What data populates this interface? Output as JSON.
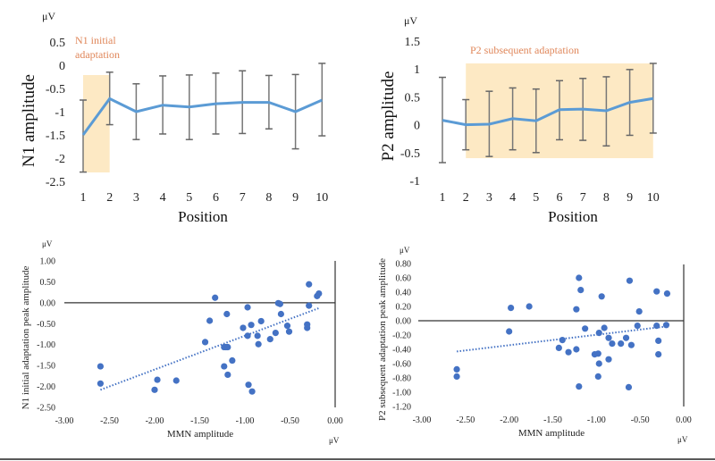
{
  "chart_data": [
    {
      "type": "line",
      "id": "n1",
      "title": "",
      "ylabel": "N1 amplitude",
      "xlabel": "Position",
      "unit": "μV",
      "ylim": [
        -2.5,
        0.5
      ],
      "yticks": [
        0.5,
        0,
        -0.5,
        -1,
        -1.5,
        -2,
        -2.5
      ],
      "ytick_labels": [
        "0.5",
        "0",
        "-0.5",
        "-1",
        "-1.5",
        "-2",
        "-2.5"
      ],
      "x": [
        1,
        2,
        3,
        4,
        5,
        6,
        7,
        8,
        9,
        10
      ],
      "xtick_labels": [
        "1",
        "2",
        "3",
        "4",
        "5",
        "6",
        "7",
        "8",
        "9",
        "10"
      ],
      "series": [
        {
          "name": "N1",
          "color": "#5b9bd5",
          "values": [
            -1.5,
            -0.72,
            -1.0,
            -0.86,
            -0.9,
            -0.83,
            -0.8,
            -0.8,
            -1.0,
            -0.75
          ]
        }
      ],
      "error_low": [
        -2.3,
        -1.28,
        -1.6,
        -1.48,
        -1.6,
        -1.48,
        -1.47,
        -1.37,
        -1.8,
        -1.52
      ],
      "error_high": [
        -0.75,
        -0.15,
        -0.4,
        -0.23,
        -0.21,
        -0.17,
        -0.12,
        -0.22,
        -0.2,
        0.04
      ],
      "highlight": {
        "from_position": 1,
        "to_position": 2,
        "color": "#fde9c4",
        "label_lines": [
          "N1 initial",
          "adaptation"
        ]
      },
      "annotation_color": "#e0875a"
    },
    {
      "type": "line",
      "id": "p2",
      "title": "",
      "ylabel": "P2 amplitude",
      "xlabel": "Position",
      "unit": "μV",
      "ylim": [
        -1,
        1.5
      ],
      "yticks": [
        1.5,
        1,
        0.5,
        0,
        -0.5,
        -1
      ],
      "ytick_labels": [
        "1.5",
        "1",
        "0.5",
        "0",
        "-0.5",
        "-1"
      ],
      "x": [
        1,
        2,
        3,
        4,
        5,
        6,
        7,
        8,
        9,
        10
      ],
      "xtick_labels": [
        "1",
        "2",
        "3",
        "4",
        "5",
        "6",
        "7",
        "8",
        "9",
        "10"
      ],
      "series": [
        {
          "name": "P2",
          "color": "#5b9bd5",
          "values": [
            0.08,
            0.0,
            0.01,
            0.11,
            0.07,
            0.27,
            0.28,
            0.25,
            0.4,
            0.47
          ]
        }
      ],
      "error_low": [
        -0.68,
        -0.45,
        -0.57,
        -0.45,
        -0.5,
        -0.27,
        -0.28,
        -0.38,
        -0.19,
        -0.15
      ],
      "error_high": [
        0.85,
        0.45,
        0.6,
        0.66,
        0.64,
        0.79,
        0.83,
        0.86,
        0.99,
        1.1
      ],
      "highlight": {
        "from_position": 2,
        "to_position": 10,
        "y_range": [
          -0.6,
          1.1
        ],
        "color": "#fde9c4",
        "label_lines": [
          "P2 subsequent adaptation"
        ]
      },
      "annotation_color": "#e0875a"
    },
    {
      "type": "scatter",
      "id": "n1-mmn",
      "ylabel": "N1 initial adaptation peak amplitude",
      "xlabel": "MMN amplitude",
      "y_unit": "μV",
      "x_unit": "μV",
      "xlim": [
        -3.0,
        0.0
      ],
      "ylim": [
        -2.5,
        1.0
      ],
      "xticks": [
        -3.0,
        -2.5,
        -2.0,
        -1.5,
        -1.0,
        -0.5,
        0.0
      ],
      "xtick_labels": [
        "-3.00",
        "-2.50",
        "-2.00",
        "-1.50",
        "-1.00",
        "-0.50",
        "0.00"
      ],
      "yticks": [
        1.0,
        0.5,
        0.0,
        -0.5,
        -1.0,
        -1.5,
        -2.0,
        -2.5
      ],
      "ytick_labels": [
        "1.00",
        "0.50",
        "0.00",
        "-0.50",
        "-1.00",
        "-1.50",
        "-2.00",
        "-2.50"
      ],
      "point_color": "#4472c4",
      "points": [
        [
          -2.6,
          -1.52
        ],
        [
          -2.6,
          -1.93
        ],
        [
          -2.0,
          -2.08
        ],
        [
          -1.97,
          -1.84
        ],
        [
          -1.76,
          -1.86
        ],
        [
          -1.33,
          0.12
        ],
        [
          -1.39,
          -0.43
        ],
        [
          -1.44,
          -0.94
        ],
        [
          -1.2,
          -0.27
        ],
        [
          -1.23,
          -1.06
        ],
        [
          -1.21,
          -1.06
        ],
        [
          -1.19,
          -1.06
        ],
        [
          -1.23,
          -1.52
        ],
        [
          -1.19,
          -1.72
        ],
        [
          -1.14,
          -1.38
        ],
        [
          -0.97,
          -0.11
        ],
        [
          -1.02,
          -0.6
        ],
        [
          -0.93,
          -0.53
        ],
        [
          -0.97,
          -0.79
        ],
        [
          -0.82,
          -0.44
        ],
        [
          -0.86,
          -0.79
        ],
        [
          -0.85,
          -0.99
        ],
        [
          -0.96,
          -1.96
        ],
        [
          -0.92,
          -2.12
        ],
        [
          -0.72,
          -0.87
        ],
        [
          -0.66,
          -0.72
        ],
        [
          -0.63,
          -0.01
        ],
        [
          -0.61,
          -0.03
        ],
        [
          -0.6,
          -0.27
        ],
        [
          -0.53,
          -0.55
        ],
        [
          -0.51,
          -0.69
        ],
        [
          -0.29,
          0.44
        ],
        [
          -0.29,
          -0.07
        ],
        [
          -0.31,
          -0.52
        ],
        [
          -0.31,
          -0.6
        ],
        [
          -0.2,
          0.16
        ],
        [
          -0.18,
          0.22
        ]
      ],
      "trendline": {
        "style": "dotted",
        "color": "#4472c4",
        "from": [
          -2.6,
          -2.08
        ],
        "to": [
          -0.17,
          -0.12
        ]
      }
    },
    {
      "type": "scatter",
      "id": "p2-mmn",
      "ylabel": "P2 subsequent adaptation peak amplitude",
      "xlabel": "MMN amplitude",
      "y_unit": "μV",
      "x_unit": "μV",
      "xlim": [
        -3.0,
        0.0
      ],
      "ylim": [
        -1.2,
        0.8
      ],
      "xticks": [
        -3.0,
        -2.5,
        -2.0,
        -1.5,
        -1.0,
        -0.5,
        0.0
      ],
      "xtick_labels": [
        "-3.00",
        "-2.50",
        "-2.00",
        "-1.50",
        "-1.00",
        "-0.50",
        "0.00"
      ],
      "yticks": [
        0.8,
        0.6,
        0.4,
        0.2,
        0.0,
        -0.2,
        -0.4,
        -0.6,
        -0.8,
        -1.0,
        -1.2
      ],
      "ytick_labels": [
        "0.80",
        "0.60",
        "0.40",
        "0.20",
        "0.00",
        "-0.20",
        "-0.40",
        "-0.60",
        "-0.80",
        "-1.00",
        "-1.20"
      ],
      "point_color": "#4472c4",
      "points": [
        [
          -2.6,
          -0.68
        ],
        [
          -2.6,
          -0.78
        ],
        [
          -2.0,
          -0.15
        ],
        [
          -1.98,
          0.18
        ],
        [
          -1.77,
          0.2
        ],
        [
          -1.43,
          -0.38
        ],
        [
          -1.39,
          -0.27
        ],
        [
          -1.32,
          -0.44
        ],
        [
          -1.23,
          0.16
        ],
        [
          -1.23,
          -0.4
        ],
        [
          -1.2,
          0.6
        ],
        [
          -1.18,
          0.43
        ],
        [
          -1.2,
          -0.92
        ],
        [
          -1.13,
          -0.11
        ],
        [
          -0.94,
          0.34
        ],
        [
          -1.02,
          -0.47
        ],
        [
          -0.98,
          -0.46
        ],
        [
          -0.97,
          -0.17
        ],
        [
          -0.97,
          -0.6
        ],
        [
          -0.98,
          -0.78
        ],
        [
          -0.91,
          -0.1
        ],
        [
          -0.86,
          -0.24
        ],
        [
          -0.82,
          -0.32
        ],
        [
          -0.86,
          -0.54
        ],
        [
          -0.72,
          -0.32
        ],
        [
          -0.66,
          -0.24
        ],
        [
          -0.62,
          0.56
        ],
        [
          -0.6,
          -0.34
        ],
        [
          -0.63,
          -0.93
        ],
        [
          -0.51,
          0.13
        ],
        [
          -0.53,
          -0.07
        ],
        [
          -0.31,
          0.41
        ],
        [
          -0.31,
          -0.07
        ],
        [
          -0.29,
          -0.28
        ],
        [
          -0.29,
          -0.47
        ],
        [
          -0.19,
          0.38
        ],
        [
          -0.2,
          -0.06
        ]
      ],
      "trendline": {
        "style": "dotted",
        "color": "#4472c4",
        "from": [
          -2.6,
          -0.43
        ],
        "to": [
          -0.2,
          -0.08
        ]
      }
    }
  ]
}
